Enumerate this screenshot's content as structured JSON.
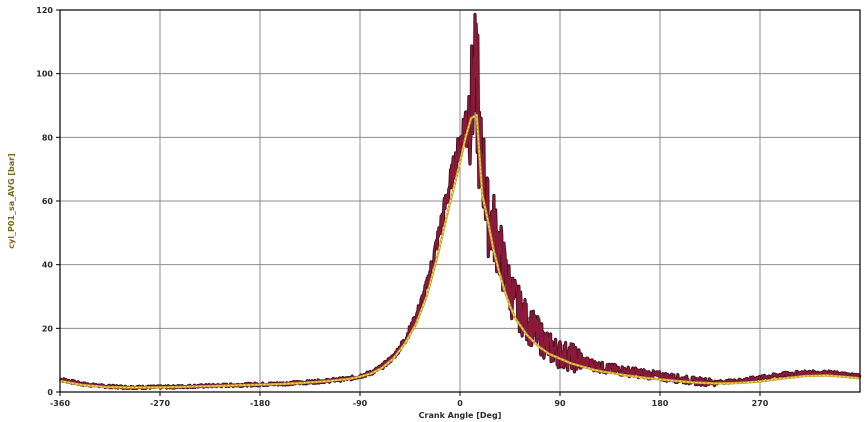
{
  "chart_data": {
    "type": "line",
    "title": "",
    "xlabel": "Crank Angle [Deg]",
    "ylabel": "cyl_P01_sa_AVG [bar]",
    "xlim": [
      -360,
      360
    ],
    "ylim": [
      0,
      120
    ],
    "x_ticks": [
      -360,
      -270,
      -180,
      -90,
      0,
      90,
      180,
      270
    ],
    "x_tick_labels": [
      "-360",
      "-270",
      "-180",
      "-90",
      "0",
      "90",
      "180",
      "270"
    ],
    "y_ticks": [
      0,
      20,
      40,
      60,
      80,
      100,
      120
    ],
    "y_tick_labels": [
      "0",
      "20",
      "40",
      "60",
      "80",
      "100",
      "120"
    ],
    "grid": true,
    "legend": "none",
    "colors": {
      "noisy_trace": "#8b1a3a",
      "noisy_trace_edge": "#3a0f1a",
      "average_trace": "#c9a227",
      "average_highlight": "#f5e6a0",
      "grid": "#8c8c8c",
      "frame": "#000000"
    },
    "series": [
      {
        "role": "noisy",
        "x": [
          -360,
          -340,
          -320,
          -300,
          -280,
          -260,
          -240,
          -220,
          -200,
          -180,
          -160,
          -140,
          -120,
          -100,
          -90,
          -80,
          -70,
          -60,
          -50,
          -40,
          -30,
          -20,
          -10,
          0,
          5,
          10,
          14,
          18,
          20,
          25,
          30,
          35,
          40,
          45,
          50,
          55,
          60,
          70,
          80,
          90,
          100,
          110,
          120,
          130,
          150,
          170,
          190,
          210,
          230,
          250,
          270,
          290,
          310,
          330,
          345,
          360
        ],
        "y": [
          4,
          2.5,
          1.8,
          1.5,
          1.5,
          1.6,
          1.8,
          2,
          2.2,
          2.4,
          2.6,
          3,
          3.5,
          4.2,
          5,
          6,
          8,
          11,
          16,
          23,
          33,
          48,
          64,
          78,
          86,
          90,
          100,
          72,
          74,
          55,
          52,
          46,
          38,
          32,
          28,
          25,
          22,
          18,
          14,
          12,
          11,
          9.5,
          8.5,
          7.5,
          6.5,
          5.5,
          4.5,
          3.5,
          3,
          3.5,
          4.5,
          5.5,
          6,
          6,
          5.5,
          5
        ]
      },
      {
        "role": "average",
        "x": [
          -360,
          -340,
          -320,
          -300,
          -280,
          -260,
          -240,
          -220,
          -200,
          -180,
          -160,
          -140,
          -120,
          -100,
          -90,
          -80,
          -70,
          -60,
          -50,
          -40,
          -30,
          -20,
          -10,
          0,
          5,
          10,
          15,
          20,
          25,
          30,
          35,
          40,
          45,
          50,
          60,
          70,
          80,
          90,
          100,
          110,
          120,
          130,
          150,
          170,
          190,
          210,
          230,
          250,
          270,
          290,
          310,
          330,
          345,
          360
        ],
        "y": [
          3.5,
          2.2,
          1.6,
          1.4,
          1.4,
          1.5,
          1.7,
          1.9,
          2.1,
          2.3,
          2.5,
          2.9,
          3.4,
          4.1,
          4.8,
          5.8,
          7.6,
          10.5,
          15,
          21,
          30,
          43,
          58,
          72,
          80,
          86,
          87,
          62,
          54,
          45,
          38,
          32,
          27,
          23,
          18,
          14.5,
          12,
          10.5,
          9,
          8,
          7,
          6.3,
          5.2,
          4.3,
          3.6,
          3,
          2.7,
          2.8,
          3.3,
          4.2,
          5,
          5.2,
          4.8,
          4.3
        ]
      }
    ]
  }
}
